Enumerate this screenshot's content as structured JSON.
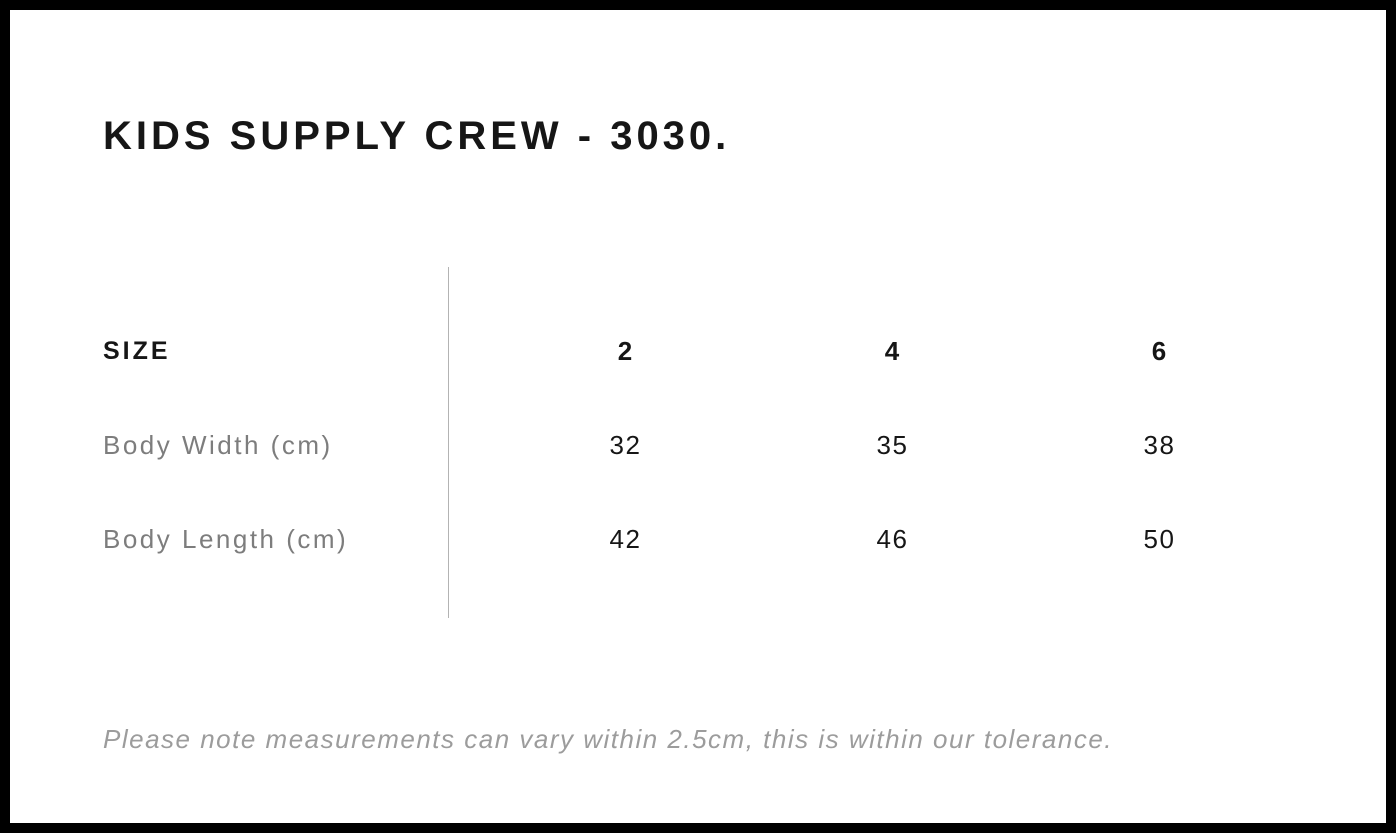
{
  "title": "KIDS SUPPLY CREW - 3030.",
  "size_chart": {
    "header_label": "SIZE",
    "columns": [
      "2",
      "4",
      "6"
    ],
    "rows": [
      {
        "label": "Body Width (cm)",
        "values": [
          "32",
          "35",
          "38"
        ]
      },
      {
        "label": "Body Length (cm)",
        "values": [
          "42",
          "46",
          "50"
        ]
      }
    ]
  },
  "footnote": "Please note measurements can vary within 2.5cm, this is within our tolerance.",
  "colors": {
    "page_background": "#ffffff",
    "page_border": "#000000",
    "heading_text": "#161616",
    "row_label_text": "#7d7d7d",
    "footnote_text": "#9c9c9c",
    "divider_line": "#b3b3b3"
  }
}
